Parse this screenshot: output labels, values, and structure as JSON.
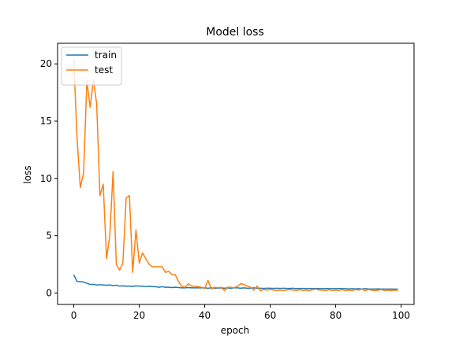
{
  "chart_data": {
    "type": "line",
    "title": "Model loss",
    "xlabel": "epoch",
    "ylabel": "loss",
    "xlim": [
      -4.95,
      103.95
    ],
    "ylim": [
      -1.0,
      21.8
    ],
    "xticks": [
      0,
      20,
      40,
      60,
      80,
      100
    ],
    "yticks": [
      0,
      5,
      10,
      15,
      20
    ],
    "grid": false,
    "legend_position": "top-left",
    "series": [
      {
        "name": "train",
        "color": "#1f77b4",
        "x": [
          0,
          1,
          2,
          3,
          4,
          5,
          6,
          7,
          8,
          9,
          10,
          11,
          12,
          13,
          14,
          15,
          16,
          17,
          18,
          19,
          20,
          21,
          22,
          23,
          24,
          25,
          26,
          27,
          28,
          29,
          30,
          31,
          32,
          33,
          34,
          35,
          36,
          37,
          38,
          39,
          40,
          41,
          42,
          43,
          44,
          45,
          46,
          47,
          48,
          49,
          50,
          51,
          52,
          53,
          54,
          55,
          56,
          57,
          58,
          59,
          60,
          61,
          62,
          63,
          64,
          65,
          66,
          67,
          68,
          69,
          70,
          71,
          72,
          73,
          74,
          75,
          76,
          77,
          78,
          79,
          80,
          81,
          82,
          83,
          84,
          85,
          86,
          87,
          88,
          89,
          90,
          91,
          92,
          93,
          94,
          95,
          96,
          97,
          98,
          99
        ],
        "values": [
          1.6,
          1.0,
          1.0,
          0.95,
          0.85,
          0.75,
          0.75,
          0.7,
          0.72,
          0.7,
          0.68,
          0.7,
          0.65,
          0.68,
          0.6,
          0.62,
          0.6,
          0.6,
          0.58,
          0.62,
          0.6,
          0.6,
          0.55,
          0.6,
          0.55,
          0.55,
          0.5,
          0.55,
          0.5,
          0.5,
          0.48,
          0.5,
          0.48,
          0.45,
          0.45,
          0.48,
          0.45,
          0.45,
          0.45,
          0.45,
          0.45,
          0.42,
          0.45,
          0.42,
          0.42,
          0.45,
          0.42,
          0.45,
          0.42,
          0.45,
          0.45,
          0.42,
          0.45,
          0.42,
          0.42,
          0.45,
          0.42,
          0.42,
          0.4,
          0.42,
          0.42,
          0.4,
          0.42,
          0.4,
          0.42,
          0.4,
          0.4,
          0.42,
          0.38,
          0.4,
          0.4,
          0.38,
          0.4,
          0.38,
          0.4,
          0.38,
          0.38,
          0.4,
          0.38,
          0.38,
          0.38,
          0.4,
          0.38,
          0.38,
          0.36,
          0.38,
          0.36,
          0.38,
          0.35,
          0.38,
          0.36,
          0.35,
          0.35,
          0.36,
          0.35,
          0.35,
          0.34,
          0.35,
          0.34,
          0.35
        ]
      },
      {
        "name": "test",
        "color": "#ff7f0e",
        "x": [
          0,
          1,
          2,
          3,
          4,
          5,
          6,
          7,
          8,
          9,
          10,
          11,
          12,
          13,
          14,
          15,
          16,
          17,
          18,
          19,
          20,
          21,
          22,
          23,
          24,
          25,
          26,
          27,
          28,
          29,
          30,
          31,
          32,
          33,
          34,
          35,
          36,
          37,
          38,
          39,
          40,
          41,
          42,
          43,
          44,
          45,
          46,
          47,
          48,
          49,
          50,
          51,
          52,
          53,
          54,
          55,
          56,
          57,
          58,
          59,
          60,
          61,
          62,
          63,
          64,
          65,
          66,
          67,
          68,
          69,
          70,
          71,
          72,
          73,
          74,
          75,
          76,
          77,
          78,
          79,
          80,
          81,
          82,
          83,
          84,
          85,
          86,
          87,
          88,
          89,
          90,
          91,
          92,
          93,
          94,
          95,
          96,
          97,
          98,
          99
        ],
        "values": [
          20.3,
          13.5,
          9.2,
          10.5,
          18.5,
          16.2,
          18.6,
          16.5,
          8.5,
          9.5,
          3.0,
          5.0,
          10.6,
          2.5,
          2.0,
          2.6,
          8.3,
          8.5,
          1.8,
          5.5,
          2.6,
          3.5,
          3.0,
          2.5,
          2.3,
          2.3,
          2.3,
          2.3,
          1.8,
          1.9,
          1.6,
          1.6,
          1.0,
          0.6,
          0.5,
          0.8,
          0.6,
          0.6,
          0.55,
          0.5,
          0.4,
          1.1,
          0.35,
          0.5,
          0.45,
          0.5,
          0.2,
          0.5,
          0.5,
          0.45,
          0.6,
          0.8,
          0.75,
          0.6,
          0.5,
          0.25,
          0.6,
          0.2,
          0.3,
          0.25,
          0.3,
          0.25,
          0.2,
          0.25,
          0.2,
          0.25,
          0.3,
          0.25,
          0.2,
          0.3,
          0.2,
          0.25,
          0.2,
          0.3,
          0.35,
          0.25,
          0.25,
          0.2,
          0.3,
          0.2,
          0.25,
          0.2,
          0.3,
          0.2,
          0.25,
          0.2,
          0.3,
          0.25,
          0.35,
          0.2,
          0.3,
          0.25,
          0.2,
          0.25,
          0.3,
          0.2,
          0.25,
          0.2,
          0.25,
          0.2
        ]
      }
    ]
  }
}
